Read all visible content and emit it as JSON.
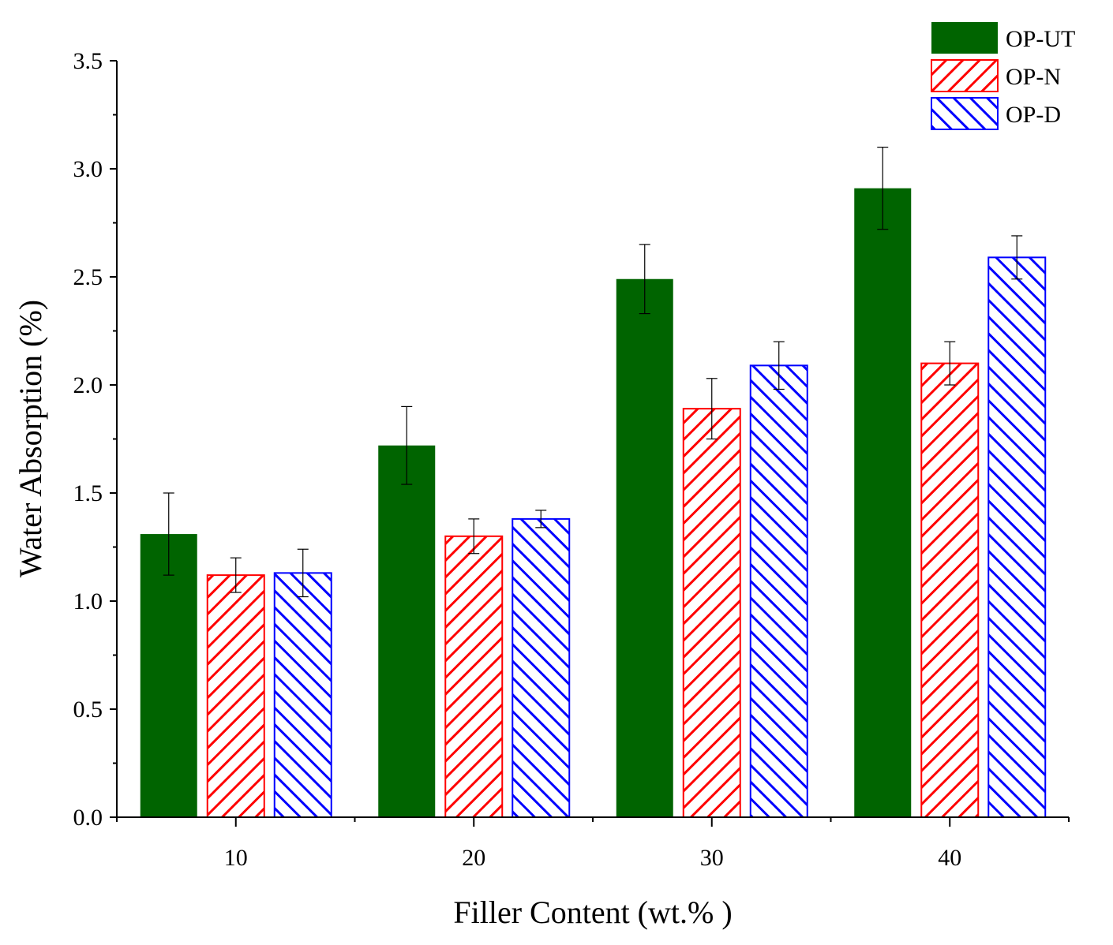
{
  "chart_data": {
    "type": "bar",
    "xlabel": "Filler Content (wt.% )",
    "ylabel": "Water Absorption (%)",
    "categories": [
      "10",
      "20",
      "30",
      "40"
    ],
    "ylim": [
      0,
      3.5
    ],
    "yticks": [
      "0.0",
      "0.5",
      "1.0",
      "1.5",
      "2.0",
      "2.5",
      "3.0",
      "3.5"
    ],
    "series": [
      {
        "name": "OP-UT",
        "color": "#006400",
        "pattern": "solid",
        "values": [
          1.31,
          1.72,
          2.49,
          2.91
        ],
        "errors": [
          0.19,
          0.18,
          0.16,
          0.19
        ]
      },
      {
        "name": "OP-N",
        "color": "#ff0000",
        "pattern": "hatch-right",
        "values": [
          1.12,
          1.3,
          1.89,
          2.1
        ],
        "errors": [
          0.08,
          0.08,
          0.14,
          0.1
        ]
      },
      {
        "name": "OP-D",
        "color": "#0000ff",
        "pattern": "hatch-left",
        "values": [
          1.13,
          1.38,
          2.09,
          2.59
        ],
        "errors": [
          0.11,
          0.04,
          0.11,
          0.1
        ]
      }
    ],
    "legend_position": "top-right",
    "grid": false
  }
}
